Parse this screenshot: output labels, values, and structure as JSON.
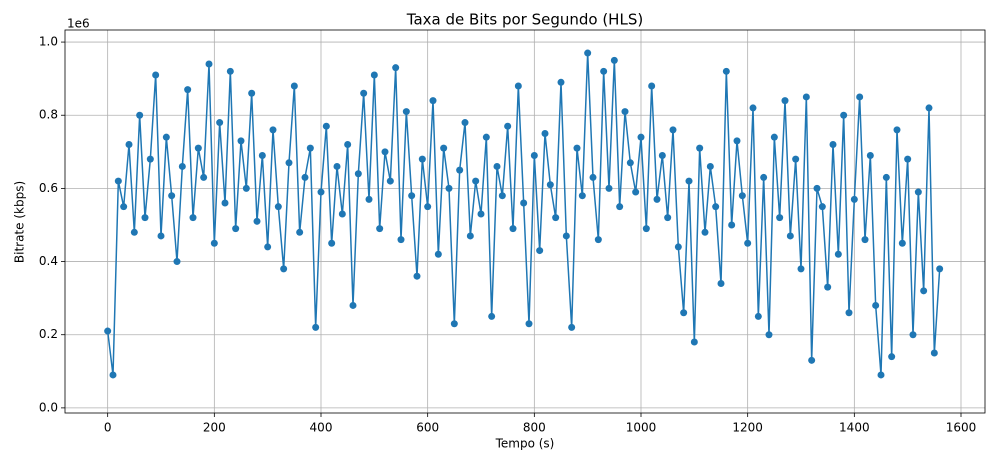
{
  "chart_data": {
    "type": "line",
    "title": "Taxa de Bits por Segundo (HLS)",
    "xlabel": "Tempo (s)",
    "ylabel": "Bitrate (kbps)",
    "y_offset_label": "1e6",
    "grid": true,
    "marker": true,
    "x": [
      0,
      10,
      20,
      30,
      40,
      50,
      60,
      70,
      80,
      90,
      100,
      110,
      120,
      130,
      140,
      150,
      160,
      170,
      180,
      190,
      200,
      210,
      220,
      230,
      240,
      250,
      260,
      270,
      280,
      290,
      300,
      310,
      320,
      330,
      340,
      350,
      360,
      370,
      380,
      390,
      400,
      410,
      420,
      430,
      440,
      450,
      460,
      470,
      480,
      490,
      500,
      510,
      520,
      530,
      540,
      550,
      560,
      570,
      580,
      590,
      600,
      610,
      620,
      630,
      640,
      650,
      660,
      670,
      680,
      690,
      700,
      710,
      720,
      730,
      740,
      750,
      760,
      770,
      780,
      790,
      800,
      810,
      820,
      830,
      840,
      850,
      860,
      870,
      880,
      890,
      900,
      910,
      920,
      930,
      940,
      950,
      960,
      970,
      980,
      990,
      1000,
      1010,
      1020,
      1030,
      1040,
      1050,
      1060,
      1070,
      1080,
      1090,
      1100,
      1110,
      1120,
      1130,
      1140,
      1150,
      1160,
      1170,
      1180,
      1190,
      1200,
      1210,
      1220,
      1230,
      1240,
      1250,
      1260,
      1270,
      1280,
      1290,
      1300,
      1310,
      1320,
      1330,
      1340,
      1350,
      1360,
      1370,
      1380,
      1390,
      1400,
      1410,
      1420,
      1430,
      1440,
      1450,
      1460,
      1470,
      1480,
      1490,
      1500,
      1510,
      1520,
      1530,
      1540,
      1550,
      1560
    ],
    "series": [
      {
        "name": "Bitrate",
        "color": "#1f77b4",
        "values": [
          0.21,
          0.09,
          0.62,
          0.55,
          0.72,
          0.48,
          0.8,
          0.52,
          0.68,
          0.91,
          0.47,
          0.74,
          0.58,
          0.4,
          0.66,
          0.87,
          0.52,
          0.71,
          0.63,
          0.94,
          0.45,
          0.78,
          0.56,
          0.92,
          0.49,
          0.73,
          0.6,
          0.86,
          0.51,
          0.69,
          0.44,
          0.76,
          0.55,
          0.38,
          0.67,
          0.88,
          0.48,
          0.63,
          0.71,
          0.22,
          0.59,
          0.77,
          0.45,
          0.66,
          0.53,
          0.72,
          0.28,
          0.64,
          0.86,
          0.57,
          0.91,
          0.49,
          0.7,
          0.62,
          0.93,
          0.46,
          0.81,
          0.58,
          0.36,
          0.68,
          0.55,
          0.84,
          0.42,
          0.71,
          0.6,
          0.23,
          0.65,
          0.78,
          0.47,
          0.62,
          0.53,
          0.74,
          0.25,
          0.66,
          0.58,
          0.77,
          0.49,
          0.88,
          0.56,
          0.23,
          0.69,
          0.43,
          0.75,
          0.61,
          0.52,
          0.89,
          0.47,
          0.22,
          0.71,
          0.58,
          0.97,
          0.63,
          0.46,
          0.92,
          0.6,
          0.95,
          0.55,
          0.81,
          0.67,
          0.59,
          0.74,
          0.49,
          0.88,
          0.57,
          0.69,
          0.52,
          0.76,
          0.44,
          0.26,
          0.62,
          0.18,
          0.71,
          0.48,
          0.66,
          0.55,
          0.34,
          0.92,
          0.5,
          0.73,
          0.58,
          0.45,
          0.82,
          0.25,
          0.63,
          0.2,
          0.74,
          0.52,
          0.84,
          0.47,
          0.68,
          0.38,
          0.85,
          0.13,
          0.6,
          0.55,
          0.33,
          0.72,
          0.42,
          0.8,
          0.26,
          0.57,
          0.85,
          0.46,
          0.69,
          0.28,
          0.09,
          0.63,
          0.14,
          0.76,
          0.45,
          0.68,
          0.2,
          0.59,
          0.32,
          0.82,
          0.15,
          0.38
        ]
      }
    ],
    "xlim": [
      -80,
      1645
    ],
    "xticks": [
      0,
      200,
      400,
      600,
      800,
      1000,
      1200,
      1400,
      1600
    ],
    "ylim": [
      -0.014,
      1.033
    ],
    "yticks": [
      {
        "value": 0,
        "label": "0.0"
      },
      0.2,
      0.4,
      0.6,
      0.8,
      {
        "value": 1,
        "label": "1.0"
      }
    ]
  }
}
